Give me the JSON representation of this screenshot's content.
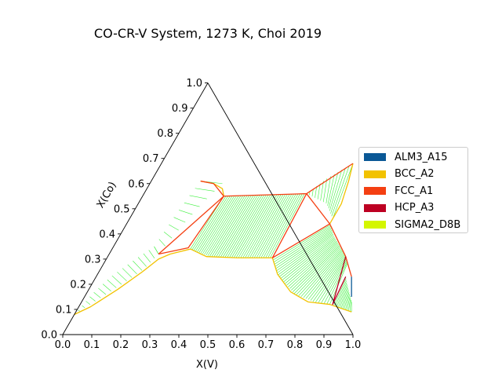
{
  "chart_data": {
    "type": "ternary-phase-diagram",
    "title": "CO-CR-V System, 1273 K, Choi 2019",
    "xlabel": "X(V)",
    "ylabel": "X(Co)",
    "xlim": [
      0.0,
      1.0
    ],
    "ylim": [
      0.0,
      1.0
    ],
    "xticks": [
      "0.0",
      "0.1",
      "0.2",
      "0.3",
      "0.4",
      "0.5",
      "0.6",
      "0.7",
      "0.8",
      "0.9",
      "1.0"
    ],
    "yticks": [
      "0.0",
      "0.1",
      "0.2",
      "0.3",
      "0.4",
      "0.5",
      "0.6",
      "0.7",
      "0.8",
      "0.9",
      "1.0"
    ],
    "legend_position": "right",
    "legend": [
      {
        "name": "ALM3_A15",
        "color": "#0a5896"
      },
      {
        "name": "BCC_A2",
        "color": "#f2c200"
      },
      {
        "name": "FCC_A1",
        "color": "#f43f12"
      },
      {
        "name": "HCP_A3",
        "color": "#bd0022"
      },
      {
        "name": "SIGMA2_D8B",
        "color": "#d4f600"
      }
    ],
    "tie_line_color": "#3ef03e",
    "phase_boundaries": [
      {
        "color": "#f2c200",
        "points": [
          [
            0.0,
            0.08
          ],
          [
            0.04,
            0.11
          ],
          [
            0.1,
            0.18
          ],
          [
            0.15,
            0.25
          ],
          [
            0.18,
            0.3
          ],
          [
            0.21,
            0.32
          ],
          [
            0.27,
            0.34
          ]
        ]
      },
      {
        "color": "#f2c200",
        "points": [
          [
            0.27,
            0.34
          ],
          [
            0.34,
            0.31
          ],
          [
            0.45,
            0.305
          ],
          [
            0.57,
            0.305
          ]
        ]
      },
      {
        "color": "#f2c200",
        "points": [
          [
            0.57,
            0.305
          ],
          [
            0.62,
            0.24
          ],
          [
            0.7,
            0.17
          ],
          [
            0.78,
            0.13
          ],
          [
            0.86,
            0.12
          ],
          [
            0.95,
            0.09
          ]
        ]
      },
      {
        "color": "#f2c200",
        "points": [
          [
            0.66,
            0.68
          ],
          [
            0.68,
            0.61
          ],
          [
            0.7,
            0.52
          ],
          [
            0.7,
            0.48
          ],
          [
            0.7,
            0.44
          ]
        ]
      },
      {
        "color": "#f2c200",
        "points": [
          [
            0.17,
            0.61
          ],
          [
            0.22,
            0.6
          ],
          [
            0.26,
            0.58
          ],
          [
            0.28,
            0.55
          ]
        ]
      },
      {
        "color": "#f43f12",
        "points": [
          [
            0.17,
            0.32
          ],
          [
            0.28,
            0.55
          ],
          [
            0.56,
            0.56
          ],
          [
            0.66,
            0.68
          ]
        ]
      },
      {
        "color": "#f43f12",
        "points": [
          [
            0.17,
            0.32
          ],
          [
            0.26,
            0.345
          ],
          [
            0.28,
            0.55
          ]
        ]
      },
      {
        "color": "#f43f12",
        "points": [
          [
            0.56,
            0.56
          ],
          [
            0.7,
            0.44
          ],
          [
            0.57,
            0.305
          ],
          [
            0.56,
            0.56
          ]
        ]
      },
      {
        "color": "#f43f12",
        "points": [
          [
            0.7,
            0.44
          ],
          [
            0.82,
            0.31
          ],
          [
            0.88,
            0.23
          ]
        ]
      },
      {
        "color": "#f43f12",
        "points": [
          [
            0.17,
            0.61
          ],
          [
            0.22,
            0.6
          ],
          [
            0.28,
            0.55
          ]
        ]
      },
      {
        "color": "#bd0022",
        "points": [
          [
            0.82,
            0.31
          ],
          [
            0.87,
            0.12
          ],
          [
            0.86,
            0.23
          ]
        ]
      },
      {
        "color": "#0a5896",
        "points": [
          [
            0.88,
            0.23
          ],
          [
            0.92,
            0.15
          ]
        ]
      }
    ],
    "tie_line_regions": [
      {
        "a": [
          [
            0.0,
            0.08
          ],
          [
            0.07,
            0.16
          ],
          [
            0.12,
            0.22
          ],
          [
            0.15,
            0.26
          ],
          [
            0.17,
            0.32
          ]
        ],
        "b": [
          [
            0.0,
            0.08
          ],
          [
            0.02,
            0.16
          ],
          [
            0.05,
            0.23
          ],
          [
            0.1,
            0.3
          ],
          [
            0.14,
            0.35
          ]
        ],
        "count": 18
      },
      {
        "a": [
          [
            0.17,
            0.32
          ],
          [
            0.2,
            0.45
          ],
          [
            0.23,
            0.55
          ],
          [
            0.25,
            0.6
          ]
        ],
        "b": [
          [
            0.14,
            0.35
          ],
          [
            0.15,
            0.47
          ],
          [
            0.16,
            0.55
          ],
          [
            0.17,
            0.61
          ]
        ],
        "count": 10
      },
      {
        "a": [
          [
            0.27,
            0.34
          ],
          [
            0.35,
            0.31
          ],
          [
            0.45,
            0.305
          ],
          [
            0.57,
            0.305
          ]
        ],
        "b": [
          [
            0.28,
            0.55
          ],
          [
            0.38,
            0.553
          ],
          [
            0.48,
            0.556
          ],
          [
            0.56,
            0.56
          ]
        ],
        "count": 40
      },
      {
        "a": [
          [
            0.56,
            0.56
          ],
          [
            0.6,
            0.62
          ],
          [
            0.66,
            0.68
          ]
        ],
        "b": [
          [
            0.56,
            0.56
          ],
          [
            0.65,
            0.52
          ],
          [
            0.7,
            0.46
          ]
        ],
        "count": 14
      },
      {
        "a": [
          [
            0.57,
            0.305
          ],
          [
            0.63,
            0.23
          ],
          [
            0.72,
            0.16
          ],
          [
            0.8,
            0.13
          ],
          [
            0.86,
            0.12
          ]
        ],
        "b": [
          [
            0.7,
            0.44
          ],
          [
            0.74,
            0.39
          ],
          [
            0.78,
            0.35
          ],
          [
            0.82,
            0.31
          ],
          [
            0.84,
            0.28
          ]
        ],
        "count": 34
      },
      {
        "a": [
          [
            0.87,
            0.12
          ],
          [
            0.92,
            0.1
          ],
          [
            0.95,
            0.09
          ]
        ],
        "b": [
          [
            0.86,
            0.23
          ],
          [
            0.88,
            0.2
          ],
          [
            0.93,
            0.13
          ]
        ],
        "count": 14
      }
    ]
  }
}
